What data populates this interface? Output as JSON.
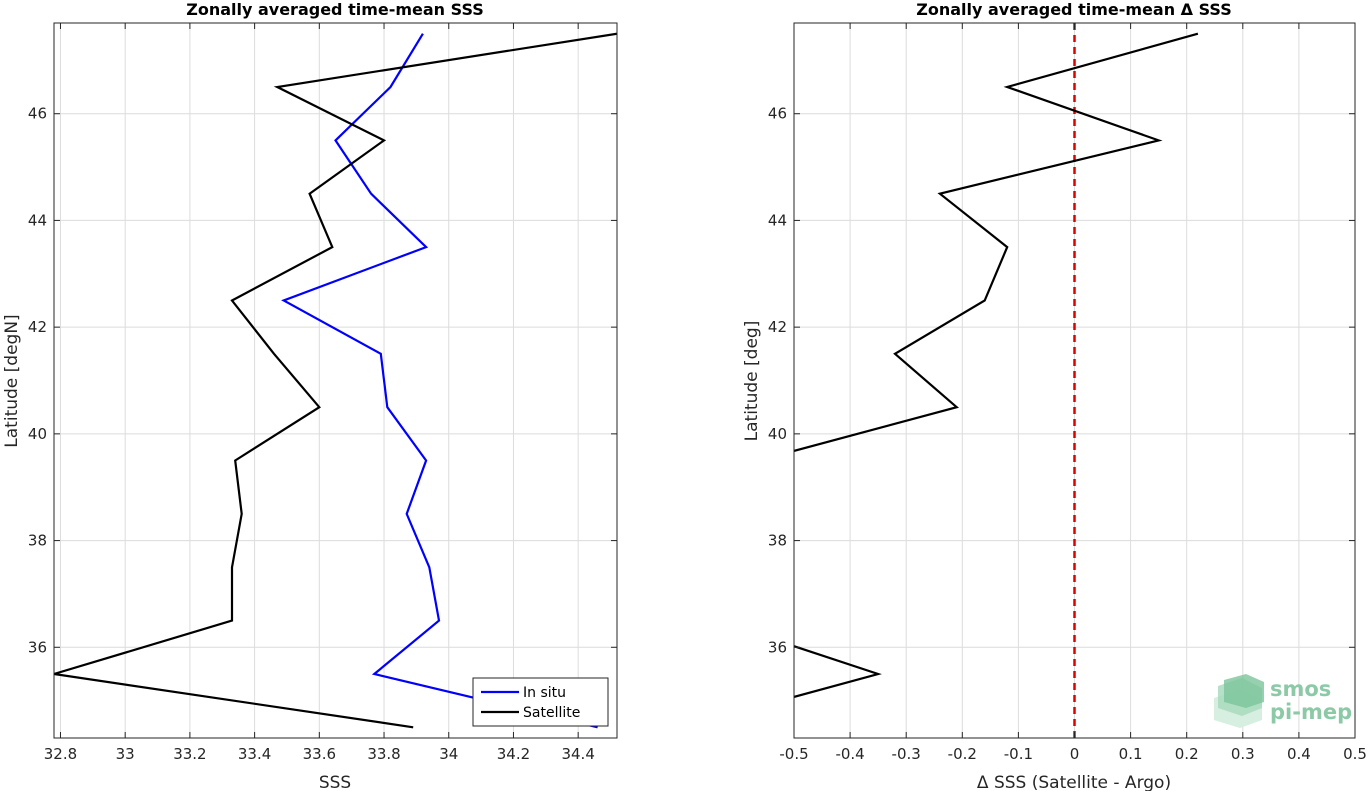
{
  "chart_data": [
    {
      "type": "line",
      "title": "Zonally averaged time-mean SSS",
      "xlabel": "SSS",
      "ylabel": "Latitude [degN]",
      "xlim": [
        32.78,
        34.52
      ],
      "ylim": [
        34.3,
        47.7
      ],
      "xticks": [
        32.8,
        33,
        33.2,
        33.4,
        33.6,
        33.8,
        34,
        34.2,
        34.4
      ],
      "xtick_labels": [
        "32.8",
        "33",
        "33.2",
        "33.4",
        "33.6",
        "33.8",
        "34",
        "34.2",
        "34.4"
      ],
      "yticks": [
        36,
        38,
        40,
        42,
        44,
        46
      ],
      "ytick_labels": [
        "36",
        "38",
        "40",
        "42",
        "44",
        "46"
      ],
      "grid": true,
      "legend": "bottom-right",
      "series": [
        {
          "name": "In situ",
          "color": "#0000ff",
          "x": [
            34.46,
            33.77,
            33.97,
            33.94,
            33.87,
            33.93,
            33.81,
            33.79,
            33.49,
            33.93,
            33.76,
            33.65,
            33.82,
            33.92
          ],
          "y": [
            34.5,
            35.5,
            36.5,
            37.5,
            38.5,
            39.5,
            40.5,
            41.5,
            42.5,
            43.5,
            44.5,
            45.5,
            46.5,
            47.5
          ]
        },
        {
          "name": "Satellite",
          "color": "#000000",
          "x": [
            33.89,
            32.78,
            33.33,
            33.33,
            33.36,
            33.34,
            33.6,
            33.46,
            33.33,
            33.64,
            33.57,
            33.8,
            33.47,
            34.52
          ],
          "y": [
            34.5,
            35.5,
            36.5,
            37.5,
            38.5,
            39.5,
            40.5,
            41.5,
            42.5,
            43.5,
            44.5,
            45.5,
            46.5,
            47.5
          ]
        }
      ]
    },
    {
      "type": "line",
      "title": "Zonally averaged time-mean Δ SSS",
      "xlabel": "Δ SSS (Satellite - Argo)",
      "ylabel": "Latitude [deg]",
      "xlim": [
        -0.5,
        0.5
      ],
      "ylim": [
        34.3,
        47.7
      ],
      "xticks": [
        -0.5,
        -0.4,
        -0.3,
        -0.2,
        -0.1,
        0,
        0.1,
        0.2,
        0.3,
        0.4,
        0.5
      ],
      "xtick_labels": [
        "-0.5",
        "-0.4",
        "-0.3",
        "-0.2",
        "-0.1",
        "0",
        "0.1",
        "0.2",
        "0.3",
        "0.4",
        "0.5"
      ],
      "yticks": [
        36,
        38,
        40,
        42,
        44,
        46
      ],
      "ytick_labels": [
        "36",
        "38",
        "40",
        "42",
        "44",
        "46"
      ],
      "grid": true,
      "reference_line": {
        "x": 0,
        "color": "#e00000",
        "style": "dashed"
      },
      "series": [
        {
          "color": "#000000",
          "segments": [
            {
              "x": [
                -0.5,
                -0.35,
                -0.5
              ],
              "y": [
                35.07,
                35.5,
                36.02
              ]
            },
            {
              "x": [
                -0.5,
                -0.21,
                -0.32,
                -0.16,
                -0.12,
                -0.24,
                0.15,
                -0.12,
                0.22
              ],
              "y": [
                39.68,
                40.5,
                41.5,
                42.5,
                43.5,
                44.5,
                45.5,
                46.5,
                47.5
              ]
            }
          ]
        }
      ]
    }
  ],
  "logo": {
    "line1": "smos",
    "line2": "pi-mep"
  }
}
